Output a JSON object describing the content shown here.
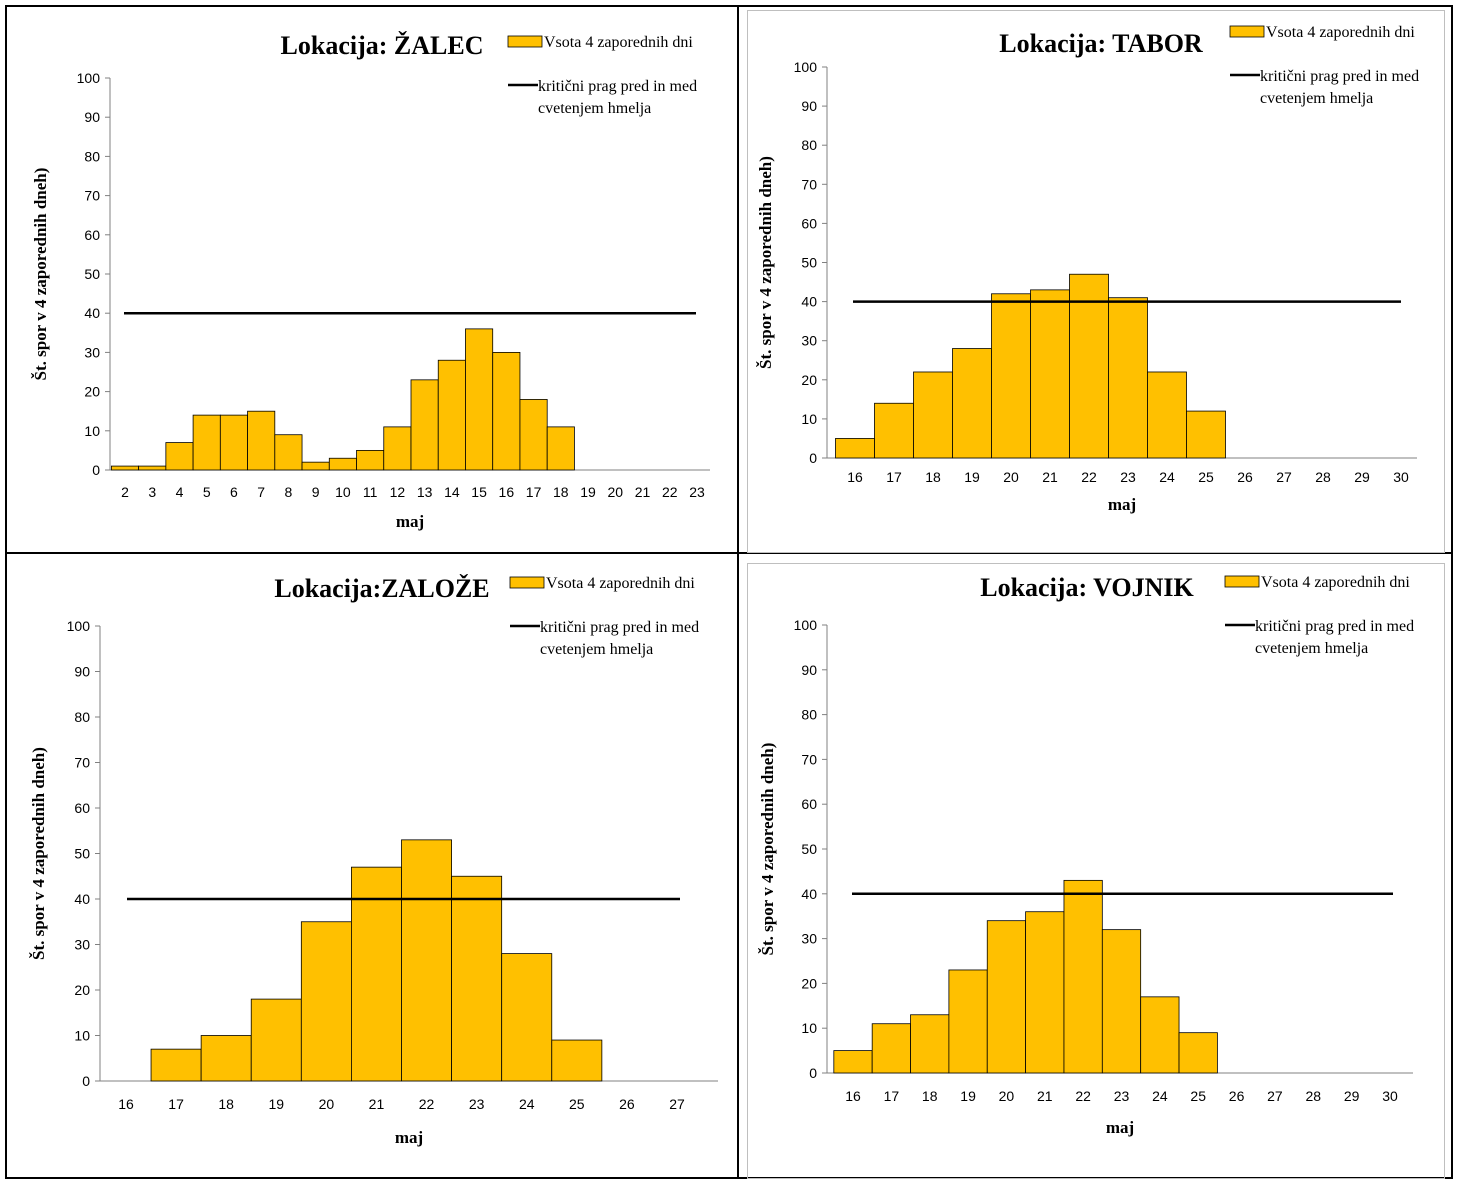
{
  "colors": {
    "bar": "#FFC000",
    "bar_stroke": "#000000",
    "threshold": "#000000",
    "axis": "#808080",
    "border": "#000000"
  },
  "chart_data": [
    {
      "type": "bar",
      "title": "Lokacija: ŽALEC",
      "categories": [
        "2",
        "3",
        "4",
        "5",
        "6",
        "7",
        "8",
        "9",
        "10",
        "11",
        "12",
        "13",
        "14",
        "15",
        "16",
        "17",
        "18",
        "19",
        "20",
        "21",
        "22",
        "23"
      ],
      "series": [
        {
          "name": "Vsota 4 zaporednih dni",
          "type": "bar",
          "values": [
            1,
            1,
            7,
            14,
            14,
            15,
            9,
            2,
            3,
            5,
            11,
            23,
            28,
            36,
            30,
            18,
            11,
            0,
            0,
            0,
            0,
            0
          ]
        },
        {
          "name": "kritični prag pred in med cvetenjem  hmelja",
          "type": "line",
          "value": 40
        }
      ],
      "xlabel": "maj",
      "ylabel": "Št. spor v 4 zaporednih dneh)",
      "ylim": [
        0,
        100
      ],
      "yticks": [
        "0",
        "10",
        "20",
        "30",
        "40",
        "50",
        "60",
        "70",
        "80",
        "90",
        "100"
      ],
      "legend": [
        "Vsota 4 zaporednih dni",
        "kritični prag pred in med",
        "cvetenjem  hmelja"
      ],
      "grid": false
    },
    {
      "type": "bar",
      "title": "Lokacija: TABOR",
      "categories": [
        "16",
        "17",
        "18",
        "19",
        "20",
        "21",
        "22",
        "23",
        "24",
        "25",
        "26",
        "27",
        "28",
        "29",
        "30"
      ],
      "series": [
        {
          "name": "Vsota 4 zaporednih dni",
          "type": "bar",
          "values": [
            5,
            14,
            22,
            28,
            42,
            43,
            47,
            41,
            22,
            12,
            0,
            0,
            0,
            0,
            0
          ]
        },
        {
          "name": "kritični prag pred in med cvetenjem  hmelja",
          "type": "line",
          "value": 40
        }
      ],
      "xlabel": "maj",
      "ylabel": "Št. spor v 4 zaporednih dneh)",
      "ylim": [
        0,
        100
      ],
      "yticks": [
        "0",
        "10",
        "20",
        "30",
        "40",
        "50",
        "60",
        "70",
        "80",
        "90",
        "100"
      ],
      "legend": [
        "Vsota 4 zaporednih dni",
        "kritični prag pred in med",
        "cvetenjem  hmelja"
      ],
      "grid": false
    },
    {
      "type": "bar",
      "title": "Lokacija:ZALOŽE",
      "categories": [
        "16",
        "17",
        "18",
        "19",
        "20",
        "21",
        "22",
        "23",
        "24",
        "25",
        "26",
        "27"
      ],
      "series": [
        {
          "name": "Vsota 4 zaporednih dni",
          "type": "bar",
          "values": [
            0,
            7,
            10,
            18,
            35,
            47,
            53,
            45,
            28,
            9,
            0,
            0
          ]
        },
        {
          "name": "kritični prag pred in med cvetenjem  hmelja",
          "type": "line",
          "value": 40
        }
      ],
      "xlabel": "maj",
      "ylabel": "Št. spor v 4 zaporednih dneh)",
      "ylim": [
        0,
        100
      ],
      "yticks": [
        "0",
        "10",
        "20",
        "30",
        "40",
        "50",
        "60",
        "70",
        "80",
        "90",
        "100"
      ],
      "legend": [
        "Vsota 4 zaporednih dni",
        "kritični prag pred in med",
        "cvetenjem  hmelja"
      ],
      "grid": false
    },
    {
      "type": "bar",
      "title": "Lokacija: VOJNIK",
      "categories": [
        "16",
        "17",
        "18",
        "19",
        "20",
        "21",
        "22",
        "23",
        "24",
        "25",
        "26",
        "27",
        "28",
        "29",
        "30"
      ],
      "series": [
        {
          "name": "Vsota 4 zaporednih dni",
          "type": "bar",
          "values": [
            5,
            11,
            13,
            23,
            34,
            36,
            43,
            32,
            17,
            9,
            0,
            0,
            0,
            0,
            0
          ]
        },
        {
          "name": "kritični prag pred in med cvetenjem  hmelja",
          "type": "line",
          "value": 40
        }
      ],
      "xlabel": "maj",
      "ylabel": "Št. spor v 4 zaporednih dneh)",
      "ylim": [
        0,
        100
      ],
      "yticks": [
        "0",
        "10",
        "20",
        "30",
        "40",
        "50",
        "60",
        "70",
        "80",
        "90",
        "100"
      ],
      "legend": [
        "Vsota 4 zaporednih dni",
        "kritični prag pred in med",
        "cvetenjem  hmelja"
      ],
      "grid": false
    }
  ]
}
